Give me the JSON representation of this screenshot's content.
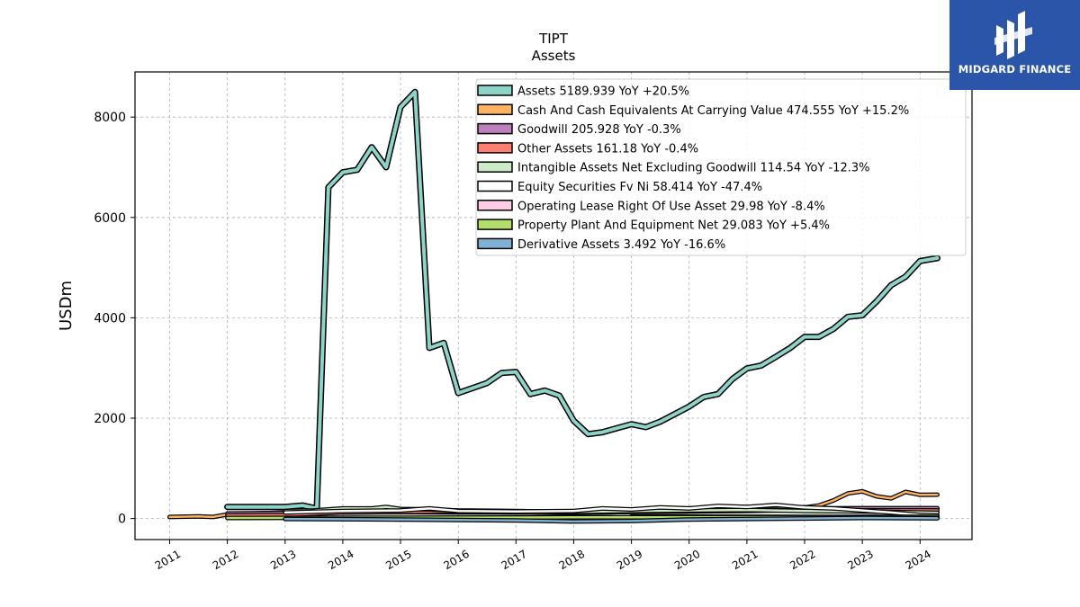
{
  "brand": {
    "name": "MIDGARD FINANCE",
    "color": "#2a55a8"
  },
  "chart_data": {
    "type": "line",
    "title": "TIPT",
    "subtitle": "Assets",
    "xlabel": "",
    "ylabel": "USDm",
    "xlim": [
      2010.4,
      2024.9
    ],
    "ylim": [
      -420,
      8900
    ],
    "yticks": [
      0,
      2000,
      4000,
      6000,
      8000
    ],
    "xticks": [
      2011,
      2012,
      2013,
      2014,
      2015,
      2016,
      2017,
      2018,
      2019,
      2020,
      2021,
      2022,
      2023,
      2024
    ],
    "grid": true,
    "legend_position": "top-right",
    "series": [
      {
        "name": "Assets",
        "legend": "Assets  5189.939 YoY +20.5%",
        "color": "#8dd3c7",
        "x": [
          2012.0,
          2012.5,
          2013.0,
          2013.3,
          2013.55,
          2013.75,
          2014.0,
          2014.25,
          2014.5,
          2014.75,
          2015.0,
          2015.25,
          2015.5,
          2015.75,
          2016.0,
          2016.5,
          2016.75,
          2017.0,
          2017.25,
          2017.5,
          2017.75,
          2018.0,
          2018.25,
          2018.5,
          2018.75,
          2019.0,
          2019.25,
          2019.5,
          2019.75,
          2020.0,
          2020.25,
          2020.5,
          2020.75,
          2021.0,
          2021.25,
          2021.5,
          2021.75,
          2022.0,
          2022.25,
          2022.5,
          2022.75,
          2023.0,
          2023.25,
          2023.5,
          2023.75,
          2024.0,
          2024.3
        ],
        "values": [
          230,
          230,
          230,
          260,
          200,
          6600,
          6900,
          6950,
          7400,
          7000,
          8200,
          8500,
          3400,
          3500,
          2500,
          2700,
          2900,
          2920,
          2480,
          2550,
          2450,
          1950,
          1680,
          1720,
          1800,
          1880,
          1820,
          1930,
          2080,
          2230,
          2420,
          2480,
          2780,
          2990,
          3050,
          3220,
          3400,
          3620,
          3620,
          3780,
          4020,
          4050,
          4330,
          4650,
          4820,
          5130,
          5190
        ]
      },
      {
        "name": "Cash And Cash Equivalents At Carrying Value",
        "legend": "Cash And Cash Equivalents At Carrying Value  474.555 YoY +15.2%",
        "color": "#fdb462",
        "x": [
          2011.0,
          2011.5,
          2011.75,
          2012.0,
          2013.0,
          2014.0,
          2015.0,
          2016.0,
          2017.0,
          2018.0,
          2019.0,
          2020.0,
          2021.0,
          2022.0,
          2022.25,
          2022.5,
          2022.75,
          2023.0,
          2023.25,
          2023.5,
          2023.75,
          2024.0,
          2024.3
        ],
        "values": [
          30,
          40,
          30,
          80,
          120,
          150,
          150,
          140,
          120,
          110,
          130,
          200,
          210,
          220,
          260,
          360,
          500,
          540,
          440,
          400,
          530,
          470,
          475
        ]
      },
      {
        "name": "Goodwill",
        "legend": "Goodwill  205.928 YoY -0.3%",
        "color": "#bc80bd",
        "x": [
          2012.0,
          2013.0,
          2014.0,
          2015.0,
          2016.0,
          2017.0,
          2018.0,
          2019.0,
          2020.0,
          2021.0,
          2022.0,
          2023.0,
          2024.0,
          2024.3
        ],
        "values": [
          100,
          110,
          120,
          125,
          120,
          120,
          130,
          140,
          160,
          180,
          200,
          205,
          206,
          206
        ]
      },
      {
        "name": "Other Assets",
        "legend": "Other Assets  161.18 YoY -0.4%",
        "color": "#fb8072",
        "x": [
          2012.0,
          2013.0,
          2014.0,
          2015.0,
          2016.0,
          2017.0,
          2018.0,
          2019.0,
          2020.0,
          2021.0,
          2022.0,
          2023.0,
          2024.0,
          2024.3
        ],
        "values": [
          60,
          70,
          120,
          130,
          140,
          120,
          110,
          130,
          140,
          150,
          170,
          165,
          162,
          161
        ]
      },
      {
        "name": "Intangible Assets Net Excluding Goodwill",
        "legend": "Intangible Assets Net Excluding Goodwill  114.54 YoY -12.3%",
        "color": "#ccebc5",
        "x": [
          2013.0,
          2013.5,
          2014.0,
          2014.5,
          2014.75,
          2015.0,
          2015.5,
          2016.0,
          2017.0,
          2017.5,
          2018.0,
          2019.0,
          2020.0,
          2021.0,
          2022.0,
          2023.0,
          2024.0,
          2024.3
        ],
        "values": [
          150,
          160,
          200,
          200,
          230,
          190,
          180,
          160,
          150,
          140,
          130,
          150,
          160,
          170,
          150,
          140,
          120,
          115
        ]
      },
      {
        "name": "Equity Securities Fv Ni",
        "legend": "Equity Securities Fv Ni  58.414 YoY -47.4%",
        "color": "#ffffff",
        "x": [
          2013.0,
          2014.0,
          2015.0,
          2015.5,
          2016.0,
          2017.0,
          2018.0,
          2018.5,
          2019.0,
          2019.5,
          2020.0,
          2020.5,
          2021.0,
          2021.5,
          2022.0,
          2022.5,
          2023.0,
          2023.5,
          2024.0,
          2024.3
        ],
        "values": [
          120,
          150,
          160,
          200,
          150,
          140,
          150,
          200,
          180,
          220,
          200,
          250,
          230,
          270,
          220,
          200,
          160,
          120,
          70,
          58
        ]
      },
      {
        "name": "Operating Lease Right Of Use Asset",
        "legend": "Operating Lease Right Of Use Asset  29.98 YoY -8.4%",
        "color": "#fccde5",
        "x": [
          2019.0,
          2020.0,
          2021.0,
          2022.0,
          2023.0,
          2024.0,
          2024.3
        ],
        "values": [
          40,
          38,
          36,
          34,
          32,
          31,
          30
        ]
      },
      {
        "name": "Property Plant And Equipment Net",
        "legend": "Property Plant And Equipment Net  29.083 YoY +5.4%",
        "color": "#b3de69",
        "x": [
          2012.0,
          2013.0,
          2014.0,
          2015.0,
          2016.0,
          2017.0,
          2018.0,
          2019.0,
          2020.0,
          2021.0,
          2022.0,
          2023.0,
          2024.0,
          2024.3
        ],
        "values": [
          10,
          12,
          14,
          16,
          18,
          20,
          22,
          24,
          26,
          27,
          27,
          28,
          29,
          29
        ]
      },
      {
        "name": "Derivative Assets",
        "legend": "Derivative Assets  3.492 YoY -16.6%",
        "color": "#80b1d3",
        "x": [
          2013.0,
          2014.0,
          2015.0,
          2016.0,
          2017.0,
          2018.0,
          2019.0,
          2020.0,
          2021.0,
          2022.0,
          2023.0,
          2024.0,
          2024.3
        ],
        "values": [
          -10,
          -15,
          -20,
          -30,
          -40,
          -60,
          -50,
          -20,
          -10,
          0,
          10,
          5,
          3.5
        ]
      }
    ]
  }
}
